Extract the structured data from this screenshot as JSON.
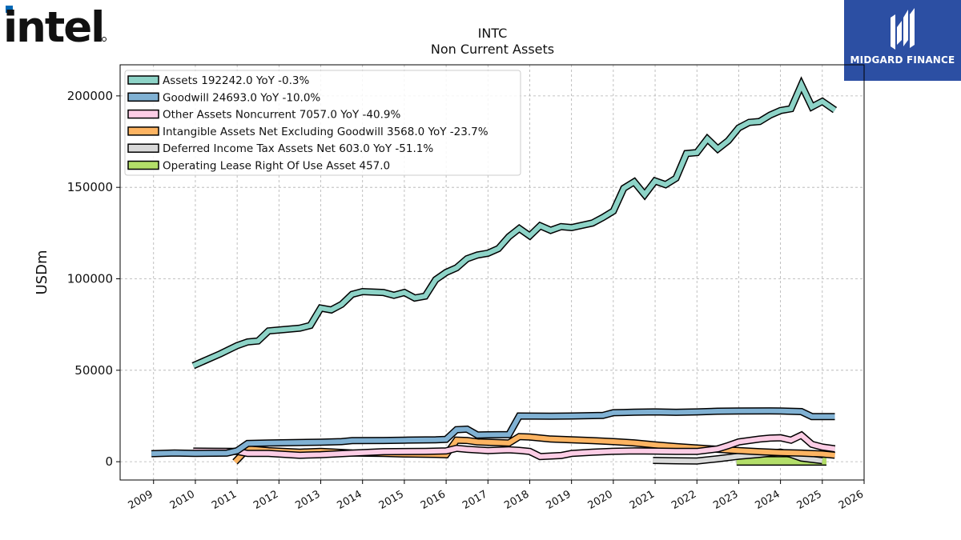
{
  "brand": {
    "left_logo_text": "intel",
    "right_logo_text": "MIDGARD FINANCE"
  },
  "chart_data": {
    "type": "line",
    "ticker": "INTC",
    "title": "Non Current  Assets",
    "ylabel": "USDm",
    "xlabel": "",
    "xlim": [
      2008.2,
      2026.0
    ],
    "ylim": [
      -10000,
      217000
    ],
    "yticks": [
      0,
      50000,
      100000,
      150000,
      200000
    ],
    "ytick_labels": [
      "0",
      "50000",
      "100000",
      "150000",
      "200000"
    ],
    "xticks": [
      2009,
      2010,
      2011,
      2012,
      2013,
      2014,
      2015,
      2016,
      2017,
      2018,
      2019,
      2020,
      2021,
      2022,
      2023,
      2024,
      2025,
      2026
    ],
    "xtick_labels": [
      "2009",
      "2010",
      "2011",
      "2012",
      "2013",
      "2014",
      "2015",
      "2016",
      "2017",
      "2018",
      "2019",
      "2020",
      "2021",
      "2022",
      "2023",
      "2024",
      "2025",
      "2026"
    ],
    "grid": true,
    "legend_position": "top-left",
    "series": [
      {
        "name": "Assets  192242.0 YoY -0.3%",
        "color": "#8dd3c7",
        "points": [
          [
            2009.95,
            52500
          ],
          [
            2010.6,
            59000
          ],
          [
            2011.0,
            63500
          ],
          [
            2011.25,
            65500
          ],
          [
            2011.5,
            66000
          ],
          [
            2011.75,
            71500
          ],
          [
            2012.0,
            72000
          ],
          [
            2012.5,
            73000
          ],
          [
            2012.75,
            74500
          ],
          [
            2013.0,
            84000
          ],
          [
            2013.25,
            83000
          ],
          [
            2013.5,
            86000
          ],
          [
            2013.75,
            91500
          ],
          [
            2014.0,
            93000
          ],
          [
            2014.5,
            92500
          ],
          [
            2014.75,
            91000
          ],
          [
            2015.0,
            92500
          ],
          [
            2015.25,
            89500
          ],
          [
            2015.5,
            90500
          ],
          [
            2015.75,
            99500
          ],
          [
            2016.0,
            103500
          ],
          [
            2016.25,
            106000
          ],
          [
            2016.5,
            111000
          ],
          [
            2016.75,
            113000
          ],
          [
            2017.0,
            114000
          ],
          [
            2017.25,
            116500
          ],
          [
            2017.5,
            123000
          ],
          [
            2017.75,
            127500
          ],
          [
            2018.0,
            123500
          ],
          [
            2018.25,
            129000
          ],
          [
            2018.5,
            126500
          ],
          [
            2018.75,
            128500
          ],
          [
            2019.0,
            128000
          ],
          [
            2019.5,
            130500
          ],
          [
            2019.75,
            133500
          ],
          [
            2020.0,
            137000
          ],
          [
            2020.25,
            149500
          ],
          [
            2020.5,
            153000
          ],
          [
            2020.75,
            146000
          ],
          [
            2021.0,
            153500
          ],
          [
            2021.25,
            151500
          ],
          [
            2021.5,
            155000
          ],
          [
            2021.75,
            168500
          ],
          [
            2022.0,
            169000
          ],
          [
            2022.25,
            176500
          ],
          [
            2022.5,
            171000
          ],
          [
            2022.75,
            175500
          ],
          [
            2023.0,
            182500
          ],
          [
            2023.25,
            185500
          ],
          [
            2023.5,
            186000
          ],
          [
            2023.75,
            189500
          ],
          [
            2024.0,
            192000
          ],
          [
            2024.25,
            193000
          ],
          [
            2024.5,
            206000
          ],
          [
            2024.75,
            194000
          ],
          [
            2025.0,
            197000
          ],
          [
            2025.3,
            192242
          ]
        ]
      },
      {
        "name": "Goodwill  24693.0 YoY -10.0%",
        "color": "#80b1d3",
        "points": [
          [
            2008.95,
            4400
          ],
          [
            2009.5,
            4800
          ],
          [
            2010.0,
            4550
          ],
          [
            2010.75,
            4700
          ],
          [
            2011.0,
            6000
          ],
          [
            2011.25,
            10000
          ],
          [
            2011.75,
            10200
          ],
          [
            2012.5,
            10500
          ],
          [
            2013.0,
            10700
          ],
          [
            2013.5,
            11000
          ],
          [
            2013.75,
            11500
          ],
          [
            2014.5,
            11600
          ],
          [
            2015.0,
            11800
          ],
          [
            2015.75,
            12000
          ],
          [
            2016.0,
            12200
          ],
          [
            2016.25,
            17500
          ],
          [
            2016.5,
            17800
          ],
          [
            2016.75,
            14600
          ],
          [
            2017.0,
            14700
          ],
          [
            2017.5,
            14800
          ],
          [
            2017.75,
            25000
          ],
          [
            2018.5,
            24900
          ],
          [
            2019.0,
            25000
          ],
          [
            2019.75,
            25300
          ],
          [
            2020.0,
            26800
          ],
          [
            2020.25,
            26900
          ],
          [
            2020.5,
            27100
          ],
          [
            2021.0,
            27200
          ],
          [
            2021.5,
            27000
          ],
          [
            2022.0,
            27200
          ],
          [
            2022.5,
            27600
          ],
          [
            2023.0,
            27700
          ],
          [
            2023.75,
            27800
          ],
          [
            2024.0,
            27700
          ],
          [
            2024.5,
            27400
          ],
          [
            2024.75,
            24700
          ],
          [
            2025.3,
            24693
          ]
        ]
      },
      {
        "name": "Other Assets Noncurrent  7057.0 YoY -40.9%",
        "color": "#fccde5",
        "points": [
          [
            2009.95,
            5800
          ],
          [
            2010.5,
            5700
          ],
          [
            2011.0,
            5600
          ],
          [
            2011.25,
            4500
          ],
          [
            2011.75,
            4500
          ],
          [
            2012.5,
            3500
          ],
          [
            2013.0,
            3800
          ],
          [
            2013.75,
            4700
          ],
          [
            2014.5,
            5500
          ],
          [
            2015.5,
            5600
          ],
          [
            2016.0,
            5900
          ],
          [
            2016.25,
            7300
          ],
          [
            2016.5,
            6800
          ],
          [
            2017.0,
            6100
          ],
          [
            2017.5,
            6500
          ],
          [
            2017.75,
            6200
          ],
          [
            2018.0,
            5600
          ],
          [
            2018.25,
            2800
          ],
          [
            2018.75,
            3400
          ],
          [
            2019.0,
            4500
          ],
          [
            2019.5,
            5200
          ],
          [
            2020.0,
            5700
          ],
          [
            2020.5,
            5900
          ],
          [
            2021.0,
            5800
          ],
          [
            2021.5,
            5600
          ],
          [
            2022.0,
            5600
          ],
          [
            2022.5,
            7000
          ],
          [
            2022.75,
            8800
          ],
          [
            2023.0,
            10800
          ],
          [
            2023.5,
            12400
          ],
          [
            2023.75,
            12900
          ],
          [
            2024.0,
            13100
          ],
          [
            2024.25,
            11800
          ],
          [
            2024.5,
            14500
          ],
          [
            2024.75,
            9500
          ],
          [
            2025.0,
            8000
          ],
          [
            2025.3,
            7057
          ]
        ]
      },
      {
        "name": "Intangible Assets Net Excluding Goodwill  3568.0 YoY -23.7%",
        "color": "#fdb462",
        "points": [
          [
            2010.95,
            -100
          ],
          [
            2011.25,
            7000
          ],
          [
            2011.75,
            6000
          ],
          [
            2012.5,
            5200
          ],
          [
            2013.0,
            5600
          ],
          [
            2013.75,
            4800
          ],
          [
            2014.5,
            4500
          ],
          [
            2015.0,
            4200
          ],
          [
            2015.75,
            4000
          ],
          [
            2016.0,
            3800
          ],
          [
            2016.25,
            11800
          ],
          [
            2016.5,
            11600
          ],
          [
            2016.75,
            10800
          ],
          [
            2017.5,
            10200
          ],
          [
            2017.75,
            13700
          ],
          [
            2018.0,
            13500
          ],
          [
            2018.5,
            12400
          ],
          [
            2019.0,
            12000
          ],
          [
            2019.5,
            11500
          ],
          [
            2020.0,
            11000
          ],
          [
            2020.5,
            10300
          ],
          [
            2021.0,
            9200
          ],
          [
            2021.5,
            8300
          ],
          [
            2022.0,
            7500
          ],
          [
            2022.5,
            6800
          ],
          [
            2023.0,
            6100
          ],
          [
            2023.5,
            5500
          ],
          [
            2024.0,
            5000
          ],
          [
            2024.5,
            4700
          ],
          [
            2025.0,
            4200
          ],
          [
            2025.3,
            3568
          ]
        ]
      },
      {
        "name": "Deferred Income Tax Assets Net  603.0 YoY -51.1%",
        "color": "#d9d9d9",
        "points": [
          [
            2020.95,
            700
          ],
          [
            2021.5,
            500
          ],
          [
            2022.0,
            400
          ],
          [
            2022.5,
            1600
          ],
          [
            2023.0,
            3000
          ],
          [
            2023.5,
            4000
          ],
          [
            2024.0,
            5200
          ],
          [
            2024.25,
            4000
          ],
          [
            2024.5,
            2000
          ],
          [
            2025.0,
            603
          ]
        ]
      },
      {
        "name": "Operating Lease Right Of Use Asset  457.0",
        "color": "#b3de69",
        "points": [
          [
            2022.95,
            457
          ],
          [
            2025.1,
            457
          ]
        ]
      }
    ]
  }
}
